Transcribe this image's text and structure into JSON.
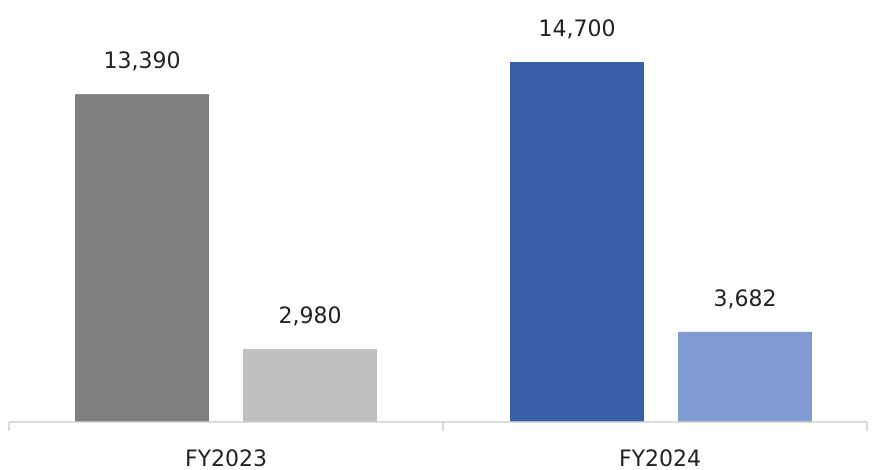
{
  "chart_data": {
    "type": "bar",
    "categories": [
      "FY2023",
      "FY2024"
    ],
    "bars": [
      {
        "category": "FY2023",
        "value": 13390,
        "label": "13,390",
        "color": "#7f7f7f"
      },
      {
        "category": "FY2023",
        "value": 2980,
        "label": "2,980",
        "color": "#bfbfbf"
      },
      {
        "category": "FY2024",
        "value": 14700,
        "label": "14,700",
        "color": "#3a5fa9"
      },
      {
        "category": "FY2024",
        "value": 3682,
        "label": "3,682",
        "color": "#7f9bd2"
      }
    ],
    "title": "",
    "xlabel": "",
    "ylabel": "",
    "ylim": [
      0,
      16000
    ],
    "grid": false,
    "legend": "none"
  }
}
